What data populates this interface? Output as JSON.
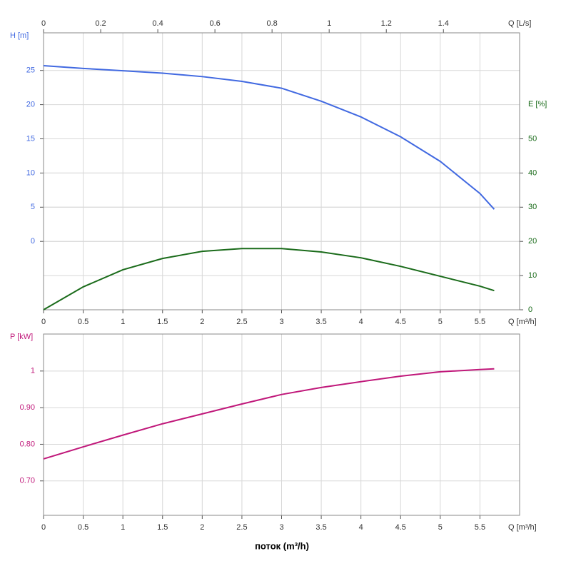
{
  "chart_data": [
    {
      "type": "line",
      "x": [
        0,
        0.5,
        1,
        1.5,
        2,
        2.5,
        3,
        3.5,
        4,
        4.5,
        5,
        5.5,
        5.68
      ],
      "series": [
        {
          "color": "#4169e1",
          "values": [
            25.7,
            25.3,
            24.95,
            24.6,
            24.1,
            23.4,
            22.4,
            20.5,
            18.2,
            15.3,
            11.7,
            7.0,
            4.7
          ]
        },
        {
          "color": "#1a6b1a",
          "axis": "y2",
          "values": [
            0,
            6.7,
            11.7,
            15,
            17.1,
            17.9,
            17.9,
            16.9,
            15.2,
            12.7,
            9.8,
            6.9,
            5.6
          ]
        }
      ],
      "xlim": [
        0,
        6
      ],
      "xticks": [
        0,
        0.5,
        1,
        1.5,
        2,
        2.5,
        3,
        3.5,
        4,
        4.5,
        5,
        5.5
      ],
      "x_label": "Q [m³/h]",
      "x2lim": [
        0,
        1.6667
      ],
      "x2ticks": [
        0,
        0.2,
        0.4,
        0.6,
        0.8,
        1,
        1.2,
        1.4
      ],
      "x2_label": "Q [L/s]",
      "ylim": [
        -10,
        30.5
      ],
      "yticks": [
        0,
        5,
        10,
        15,
        20,
        25
      ],
      "y_label": "H [m]",
      "y_color": "#4169e1",
      "y2lim": [
        0,
        81
      ],
      "y2ticks": [
        0,
        10,
        20,
        30,
        40,
        50
      ],
      "y2_label": "E [%]",
      "y2_color": "#1a6b1a",
      "grid": true
    },
    {
      "type": "line",
      "x": [
        0,
        0.5,
        1,
        1.5,
        2,
        2.5,
        3,
        3.5,
        4,
        4.5,
        5,
        5.5,
        5.68
      ],
      "series": [
        {
          "color": "#c0187a",
          "values": [
            0.76,
            0.793,
            0.825,
            0.856,
            0.883,
            0.91,
            0.936,
            0.955,
            0.971,
            0.986,
            0.998,
            1.004,
            1.006
          ]
        }
      ],
      "xlim": [
        0,
        6
      ],
      "xticks": [
        0,
        0.5,
        1,
        1.5,
        2,
        2.5,
        3,
        3.5,
        4,
        4.5,
        5,
        5.5
      ],
      "x_label": "Q [m³/h]",
      "ylim": [
        0.606,
        1.101
      ],
      "yticks": [
        {
          "value": 0.7,
          "label": "0.70"
        },
        {
          "value": 0.8,
          "label": "0.80"
        },
        {
          "value": 0.9,
          "label": "0.90"
        },
        1
      ],
      "y_label": "P [kW]",
      "y_color": "#c0187a",
      "caption": "поток (m³/h)",
      "grid": true
    }
  ]
}
